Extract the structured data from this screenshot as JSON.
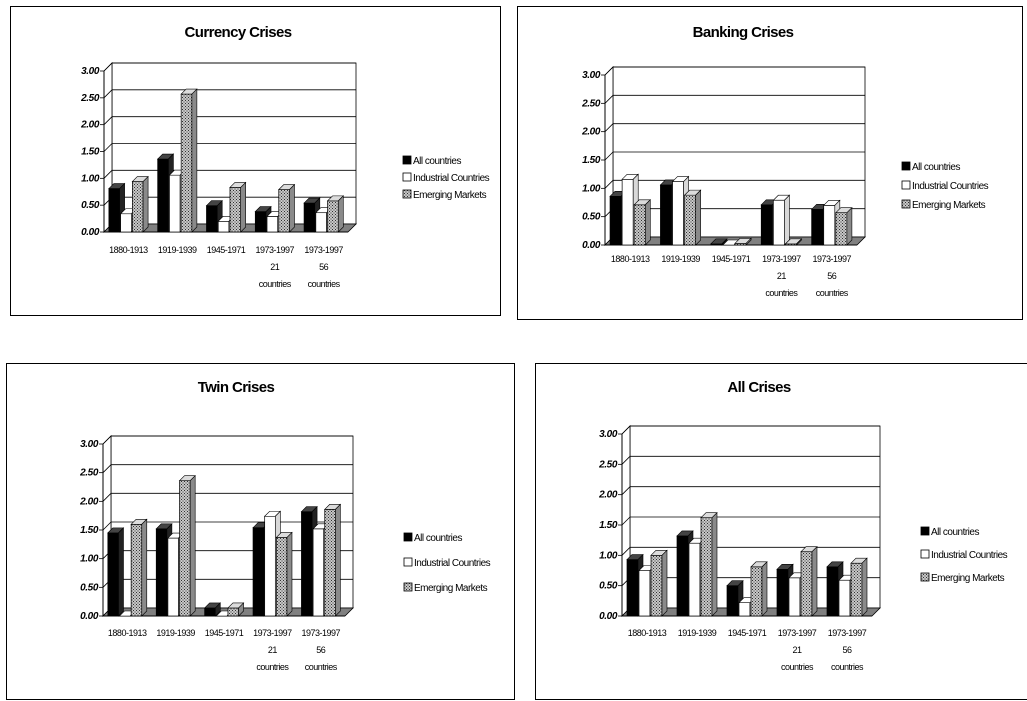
{
  "chart_data": [
    {
      "type": "bar",
      "title": "Currency Crises",
      "ylim": [
        0,
        3
      ],
      "yticks": [
        "0.00",
        "0.50",
        "1.00",
        "1.50",
        "2.00",
        "2.50",
        "3.00"
      ],
      "categories": [
        [
          "1880-1913"
        ],
        [
          "1919-1939"
        ],
        [
          "1945-1971"
        ],
        [
          "1973-1997",
          "21",
          "countries"
        ],
        [
          "1973-1997",
          "56",
          "countries"
        ]
      ],
      "series": [
        {
          "name": "All countries",
          "values": [
            0.81,
            1.36,
            0.49,
            0.38,
            0.54
          ]
        },
        {
          "name": "Industrial Countries",
          "values": [
            0.34,
            1.06,
            0.2,
            0.29,
            0.36
          ]
        },
        {
          "name": "Emerging Markets",
          "values": [
            0.94,
            2.57,
            0.83,
            0.79,
            0.58
          ]
        }
      ],
      "grid": true,
      "legend": "right"
    },
    {
      "type": "bar",
      "title": "Banking Crises",
      "ylim": [
        0,
        3
      ],
      "yticks": [
        "0.00",
        "0.50",
        "1.00",
        "1.50",
        "2.00",
        "2.50",
        "3.00"
      ],
      "categories": [
        [
          "1880-1913"
        ],
        [
          "1919-1939"
        ],
        [
          "1945-1971"
        ],
        [
          "1973-1997",
          "21",
          "countries"
        ],
        [
          "1973-1997",
          "56",
          "countries"
        ]
      ],
      "series": [
        {
          "name": "All countries",
          "values": [
            0.86,
            1.06,
            0.02,
            0.71,
            0.63
          ]
        },
        {
          "name": "Industrial Countries",
          "values": [
            1.16,
            1.12,
            0.0,
            0.79,
            0.7
          ]
        },
        {
          "name": "Emerging Markets",
          "values": [
            0.71,
            0.88,
            0.03,
            0.02,
            0.57
          ]
        }
      ],
      "grid": true,
      "legend": "right"
    },
    {
      "type": "bar",
      "title": "Twin Crises",
      "ylim": [
        0,
        3
      ],
      "yticks": [
        "0.00",
        "0.50",
        "1.00",
        "1.50",
        "2.00",
        "2.50",
        "3.00"
      ],
      "categories": [
        [
          "1880-1913"
        ],
        [
          "1919-1939"
        ],
        [
          "1945-1971"
        ],
        [
          "1973-1997",
          "21",
          "countries"
        ],
        [
          "1973-1997",
          "56",
          "countries"
        ]
      ],
      "series": [
        {
          "name": "All countries",
          "values": [
            1.45,
            1.52,
            0.14,
            1.54,
            1.82
          ]
        },
        {
          "name": "Industrial Countries",
          "values": [
            0.0,
            1.36,
            0.0,
            1.74,
            1.52
          ]
        },
        {
          "name": "Emerging Markets",
          "values": [
            1.6,
            2.36,
            0.14,
            1.37,
            1.86
          ]
        }
      ],
      "grid": true,
      "legend": "right"
    },
    {
      "type": "bar",
      "title": "All Crises",
      "ylim": [
        0,
        3
      ],
      "yticks": [
        "0.00",
        "0.50",
        "1.00",
        "1.50",
        "2.00",
        "2.50",
        "3.00"
      ],
      "categories": [
        [
          "1880-1913"
        ],
        [
          "1919-1939"
        ],
        [
          "1945-1971"
        ],
        [
          "1973-1997",
          "21",
          "countries"
        ],
        [
          "1973-1997",
          "56",
          "countries"
        ]
      ],
      "series": [
        {
          "name": "All countries",
          "values": [
            0.93,
            1.32,
            0.5,
            0.77,
            0.81
          ]
        },
        {
          "name": "Industrial Countries",
          "values": [
            0.75,
            1.2,
            0.22,
            0.63,
            0.59
          ]
        },
        {
          "name": "Emerging Markets",
          "values": [
            1.0,
            1.62,
            0.81,
            1.06,
            0.87
          ]
        }
      ],
      "grid": true,
      "legend": "right"
    }
  ],
  "colors": {
    "all_countries": "#000000",
    "industrial": "#ffffff",
    "emerging": "#9a9a9a",
    "floor": "#808080",
    "wall": "#ffffff"
  }
}
